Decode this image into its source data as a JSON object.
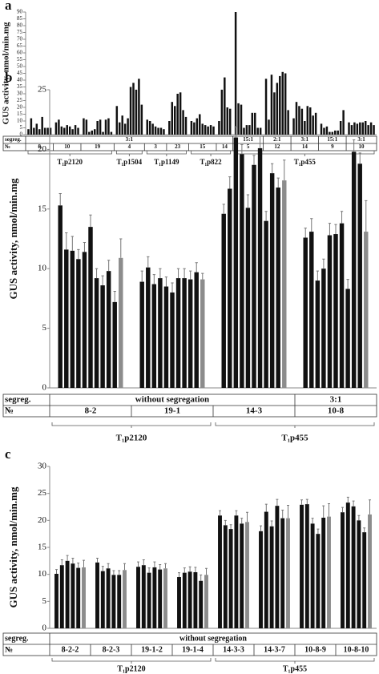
{
  "chart_data": [
    {
      "type": "bar",
      "panel": "a",
      "y_label": "GUS activity, nmol/min.mg",
      "color": "#111111",
      "ylim": [
        0,
        90
      ],
      "yticks": [
        0,
        5,
        10,
        15,
        20,
        25,
        30,
        35,
        40,
        45,
        50,
        55,
        60,
        65,
        70,
        75,
        80,
        85,
        90
      ],
      "row_labels": [
        "segreg.",
        "№"
      ],
      "groups": [
        {
          "name": "8",
          "values": [
            4,
            12,
            5,
            8,
            4,
            13,
            5,
            5,
            5
          ]
        },
        {
          "name": "10",
          "values": [
            9,
            11,
            6,
            5,
            7,
            6,
            4,
            7,
            5
          ]
        },
        {
          "name": "19",
          "values": [
            12,
            11,
            2,
            3,
            4,
            10,
            11,
            2,
            11,
            12,
            2
          ]
        },
        {
          "name": "4",
          "values": [
            21,
            9,
            14,
            8,
            12,
            35,
            38,
            33,
            41,
            22
          ]
        },
        {
          "name": "3",
          "values": [
            11,
            10,
            8,
            6,
            5,
            5,
            4
          ]
        },
        {
          "name": "23",
          "values": [
            10,
            24,
            21,
            30,
            31,
            18,
            13
          ]
        },
        {
          "name": "15",
          "values": [
            10,
            9,
            12,
            15,
            8,
            7,
            6,
            7,
            6
          ]
        },
        {
          "name": "14",
          "values": [
            10,
            33,
            42,
            20,
            19
          ]
        },
        {
          "name": "5",
          "values": [
            90,
            23,
            22,
            5,
            7,
            7,
            16,
            16,
            5,
            5
          ]
        },
        {
          "name": "12",
          "values": [
            41,
            11,
            44,
            31,
            38,
            43,
            46,
            45,
            18
          ]
        },
        {
          "name": "14",
          "values": [
            12,
            24,
            21,
            19,
            10,
            21,
            20,
            14,
            16
          ]
        },
        {
          "name": "9",
          "values": [
            8,
            5,
            6,
            2,
            2,
            3,
            3,
            10,
            18
          ]
        },
        {
          "name": "10",
          "values": [
            9,
            7,
            9,
            8,
            9,
            9,
            10,
            7,
            9,
            7
          ]
        }
      ],
      "segregation": [
        {
          "label": "3:1",
          "span": 8
        },
        {
          "label": "15:1",
          "span": 1
        },
        {
          "label": "2:1",
          "span": 1
        },
        {
          "label": "3:1",
          "span": 1
        },
        {
          "label": "15:1",
          "span": 1
        },
        {
          "label": "3:1",
          "span": 1
        }
      ],
      "lines": [
        {
          "label": "T₁p2120",
          "span": 3
        },
        {
          "label": "T₁p1504",
          "span": 1
        },
        {
          "label": "T₁p1149",
          "span": 2
        },
        {
          "label": "T₁p822",
          "span": 2
        },
        {
          "label": "T₁p455",
          "span": 5
        }
      ]
    },
    {
      "type": "bar",
      "panel": "b",
      "y_label": "GUS activity, nmol/min.mg",
      "color": "#111111",
      "ylim": [
        0,
        25
      ],
      "yticks": [
        0,
        5,
        10,
        15,
        20,
        25
      ],
      "row_labels": [
        "segreg.",
        "№"
      ],
      "groups": [
        {
          "name": "8-2",
          "values": [
            15.3,
            11.6,
            11.5,
            10.8,
            11.4,
            13.5,
            9.2,
            8.6,
            9.8,
            7.2,
            10.9
          ],
          "errors": [
            1,
            1.4,
            1.2,
            0.8,
            0.8,
            1,
            0.8,
            0.8,
            0.9,
            0.9,
            1.6
          ],
          "colors": [
            "#111111",
            "#111111",
            "#111111",
            "#111111",
            "#111111",
            "#111111",
            "#111111",
            "#111111",
            "#111111",
            "#111111",
            "#8c8c8c"
          ]
        },
        {
          "name": "19-1",
          "values": [
            8.9,
            10.1,
            8.7,
            9.2,
            8.5,
            8,
            9.2,
            9.2,
            9.1,
            9.7,
            9.1
          ],
          "errors": [
            0.9,
            0.9,
            0.8,
            0.8,
            0.8,
            0.8,
            0.8,
            0.8,
            0.7,
            0.8,
            0.5
          ],
          "colors": [
            "#111111",
            "#111111",
            "#111111",
            "#111111",
            "#111111",
            "#111111",
            "#111111",
            "#111111",
            "#111111",
            "#111111",
            "#8c8c8c"
          ]
        },
        {
          "name": "14-3",
          "values": [
            14.6,
            16.7,
            21,
            19.6,
            15.1,
            18.7,
            20.1,
            14,
            18,
            16.8,
            17.4
          ],
          "errors": [
            0.8,
            1,
            0.9,
            0.8,
            1.1,
            0.8,
            1,
            0.8,
            0.8,
            0.8,
            1.7
          ],
          "colors": [
            "#111111",
            "#111111",
            "#111111",
            "#111111",
            "#111111",
            "#111111",
            "#111111",
            "#111111",
            "#111111",
            "#111111",
            "#8c8c8c"
          ]
        },
        {
          "name": "10-8",
          "values": [
            12.6,
            13.1,
            9,
            10,
            12.8,
            12.9,
            13.8,
            8.3,
            19.8,
            18.8,
            13.1
          ],
          "errors": [
            0.8,
            1.1,
            0.8,
            0.8,
            1,
            0.8,
            1,
            0.8,
            1,
            0.9,
            2.6
          ],
          "colors": [
            "#111111",
            "#111111",
            "#111111",
            "#111111",
            "#111111",
            "#111111",
            "#111111",
            "#111111",
            "#111111",
            "#111111",
            "#8c8c8c"
          ]
        }
      ],
      "segregation": [
        {
          "label": "without segregation",
          "span": 3
        },
        {
          "label": "3:1",
          "span": 1
        }
      ],
      "lines": [
        {
          "label": "T₁p2120",
          "span": 2
        },
        {
          "label": "T₁p455",
          "span": 2
        }
      ]
    },
    {
      "type": "bar",
      "panel": "c",
      "y_label": "GUS activity, nmol/min.mg",
      "color": "#111111",
      "ylim": [
        0,
        30
      ],
      "yticks": [
        0,
        5,
        10,
        15,
        20,
        25,
        30
      ],
      "row_labels": [
        "segreg.",
        "№"
      ],
      "groups": [
        {
          "name": "8-2-2",
          "values": [
            10.1,
            11.7,
            12.5,
            12,
            11.2,
            11.3
          ],
          "errors": [
            0.8,
            1,
            1,
            1,
            0.9,
            1.3
          ],
          "colors": [
            "#111111",
            "#111111",
            "#111111",
            "#111111",
            "#111111",
            "#8c8c8c"
          ]
        },
        {
          "name": "8-2-3",
          "values": [
            12.2,
            10.6,
            11.1,
            9.9,
            9.9,
            10.8
          ],
          "errors": [
            0.8,
            0.9,
            0.9,
            0.8,
            0.8,
            1.2
          ],
          "colors": [
            "#111111",
            "#111111",
            "#111111",
            "#111111",
            "#111111",
            "#8c8c8c"
          ]
        },
        {
          "name": "19-1-2",
          "values": [
            11.4,
            11.7,
            10.3,
            11.3,
            10.9,
            11.1
          ],
          "errors": [
            0.9,
            1,
            0.9,
            1,
            0.9,
            0.9
          ],
          "colors": [
            "#111111",
            "#111111",
            "#111111",
            "#111111",
            "#111111",
            "#8c8c8c"
          ]
        },
        {
          "name": "19-1-4",
          "values": [
            9.5,
            10.3,
            10.5,
            10.4,
            8.8,
            9.9
          ],
          "errors": [
            0.8,
            0.9,
            0.9,
            0.9,
            1.1,
            1.2
          ],
          "colors": [
            "#111111",
            "#111111",
            "#111111",
            "#111111",
            "#111111",
            "#8c8c8c"
          ]
        },
        {
          "name": "14-3-3",
          "values": [
            20.9,
            19.1,
            18.4,
            20.9,
            19.4,
            19.7
          ],
          "errors": [
            0.9,
            0.9,
            0.8,
            0.9,
            1,
            1.8
          ],
          "colors": [
            "#111111",
            "#111111",
            "#111111",
            "#111111",
            "#111111",
            "#8c8c8c"
          ]
        },
        {
          "name": "14-3-7",
          "values": [
            18,
            21.6,
            18.9,
            22.7,
            20.4,
            20.4
          ],
          "errors": [
            1,
            1.4,
            1,
            1.2,
            1.5,
            2.4
          ],
          "colors": [
            "#111111",
            "#111111",
            "#111111",
            "#111111",
            "#111111",
            "#8c8c8c"
          ]
        },
        {
          "name": "10-8-9",
          "values": [
            22.9,
            23,
            19.4,
            17.5,
            20.5,
            20.7
          ],
          "errors": [
            0.9,
            0.9,
            1,
            0.9,
            2.2,
            2.4
          ],
          "colors": [
            "#111111",
            "#111111",
            "#111111",
            "#111111",
            "#111111",
            "#8c8c8c"
          ]
        },
        {
          "name": "10-8-10",
          "values": [
            21.5,
            23.3,
            22.6,
            20,
            17.8,
            21.1
          ],
          "errors": [
            0.9,
            1,
            1,
            0.9,
            0.8,
            2.7
          ],
          "colors": [
            "#111111",
            "#111111",
            "#111111",
            "#111111",
            "#111111",
            "#8c8c8c"
          ]
        }
      ],
      "segregation": [
        {
          "label": "without segregation",
          "span": 8
        }
      ],
      "lines": [
        {
          "label": "T₁p2120",
          "span": 4
        },
        {
          "label": "T₁p455",
          "span": 4
        }
      ]
    }
  ]
}
